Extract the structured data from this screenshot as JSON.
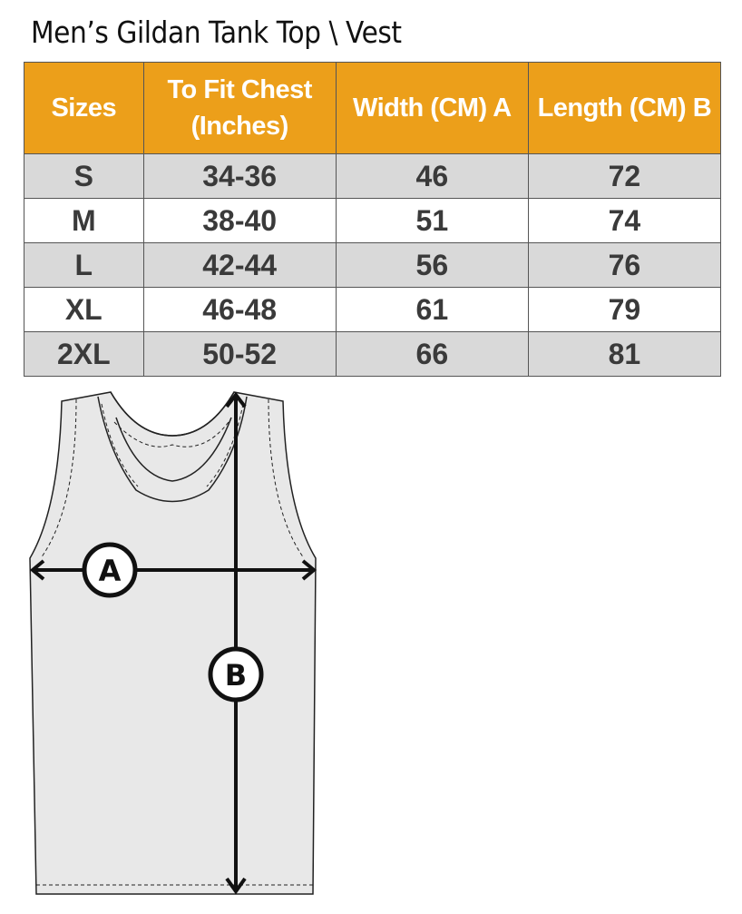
{
  "title": "Men’s Gildan Tank Top \\ Vest",
  "table": {
    "headers": [
      "Sizes",
      "To Fit Chest (Inches)",
      "Width (CM) A",
      "Length  (CM) B"
    ],
    "rows": [
      [
        "S",
        "34-36",
        "46",
        "72"
      ],
      [
        "M",
        "38-40",
        "51",
        "74"
      ],
      [
        "L",
        "42-44",
        "56",
        "76"
      ],
      [
        "XL",
        "46-48",
        "61",
        "79"
      ],
      [
        "2XL",
        "50-52",
        "66",
        "81"
      ]
    ]
  },
  "diagram": {
    "label_a": "A",
    "label_b": "B"
  },
  "colors": {
    "header": "#ec9f1a",
    "stripe": "#d9d9d9"
  }
}
